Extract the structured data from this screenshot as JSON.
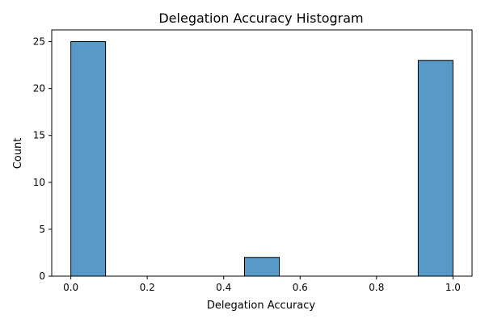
{
  "chart_data": {
    "type": "bar",
    "title": "Delegation Accuracy Histogram",
    "xlabel": "Delegation Accuracy",
    "ylabel": "Count",
    "xlim": [
      -0.05,
      1.05
    ],
    "ylim": [
      0,
      26.25
    ],
    "xticks": [
      0.0,
      0.2,
      0.4,
      0.6,
      0.8,
      1.0
    ],
    "xtick_labels": [
      "0.0",
      "0.2",
      "0.4",
      "0.6",
      "0.8",
      "1.0"
    ],
    "yticks": [
      0,
      5,
      10,
      15,
      20,
      25
    ],
    "ytick_labels": [
      "0",
      "5",
      "10",
      "15",
      "20",
      "25"
    ],
    "bins": [
      {
        "start": 0.0,
        "end": 0.0909,
        "count": 25
      },
      {
        "start": 0.4545,
        "end": 0.5455,
        "count": 2
      },
      {
        "start": 0.9091,
        "end": 1.0,
        "count": 23
      }
    ],
    "bar_color": "#5799c7",
    "edge_color": "#000000",
    "grid": false,
    "legend": "none"
  }
}
